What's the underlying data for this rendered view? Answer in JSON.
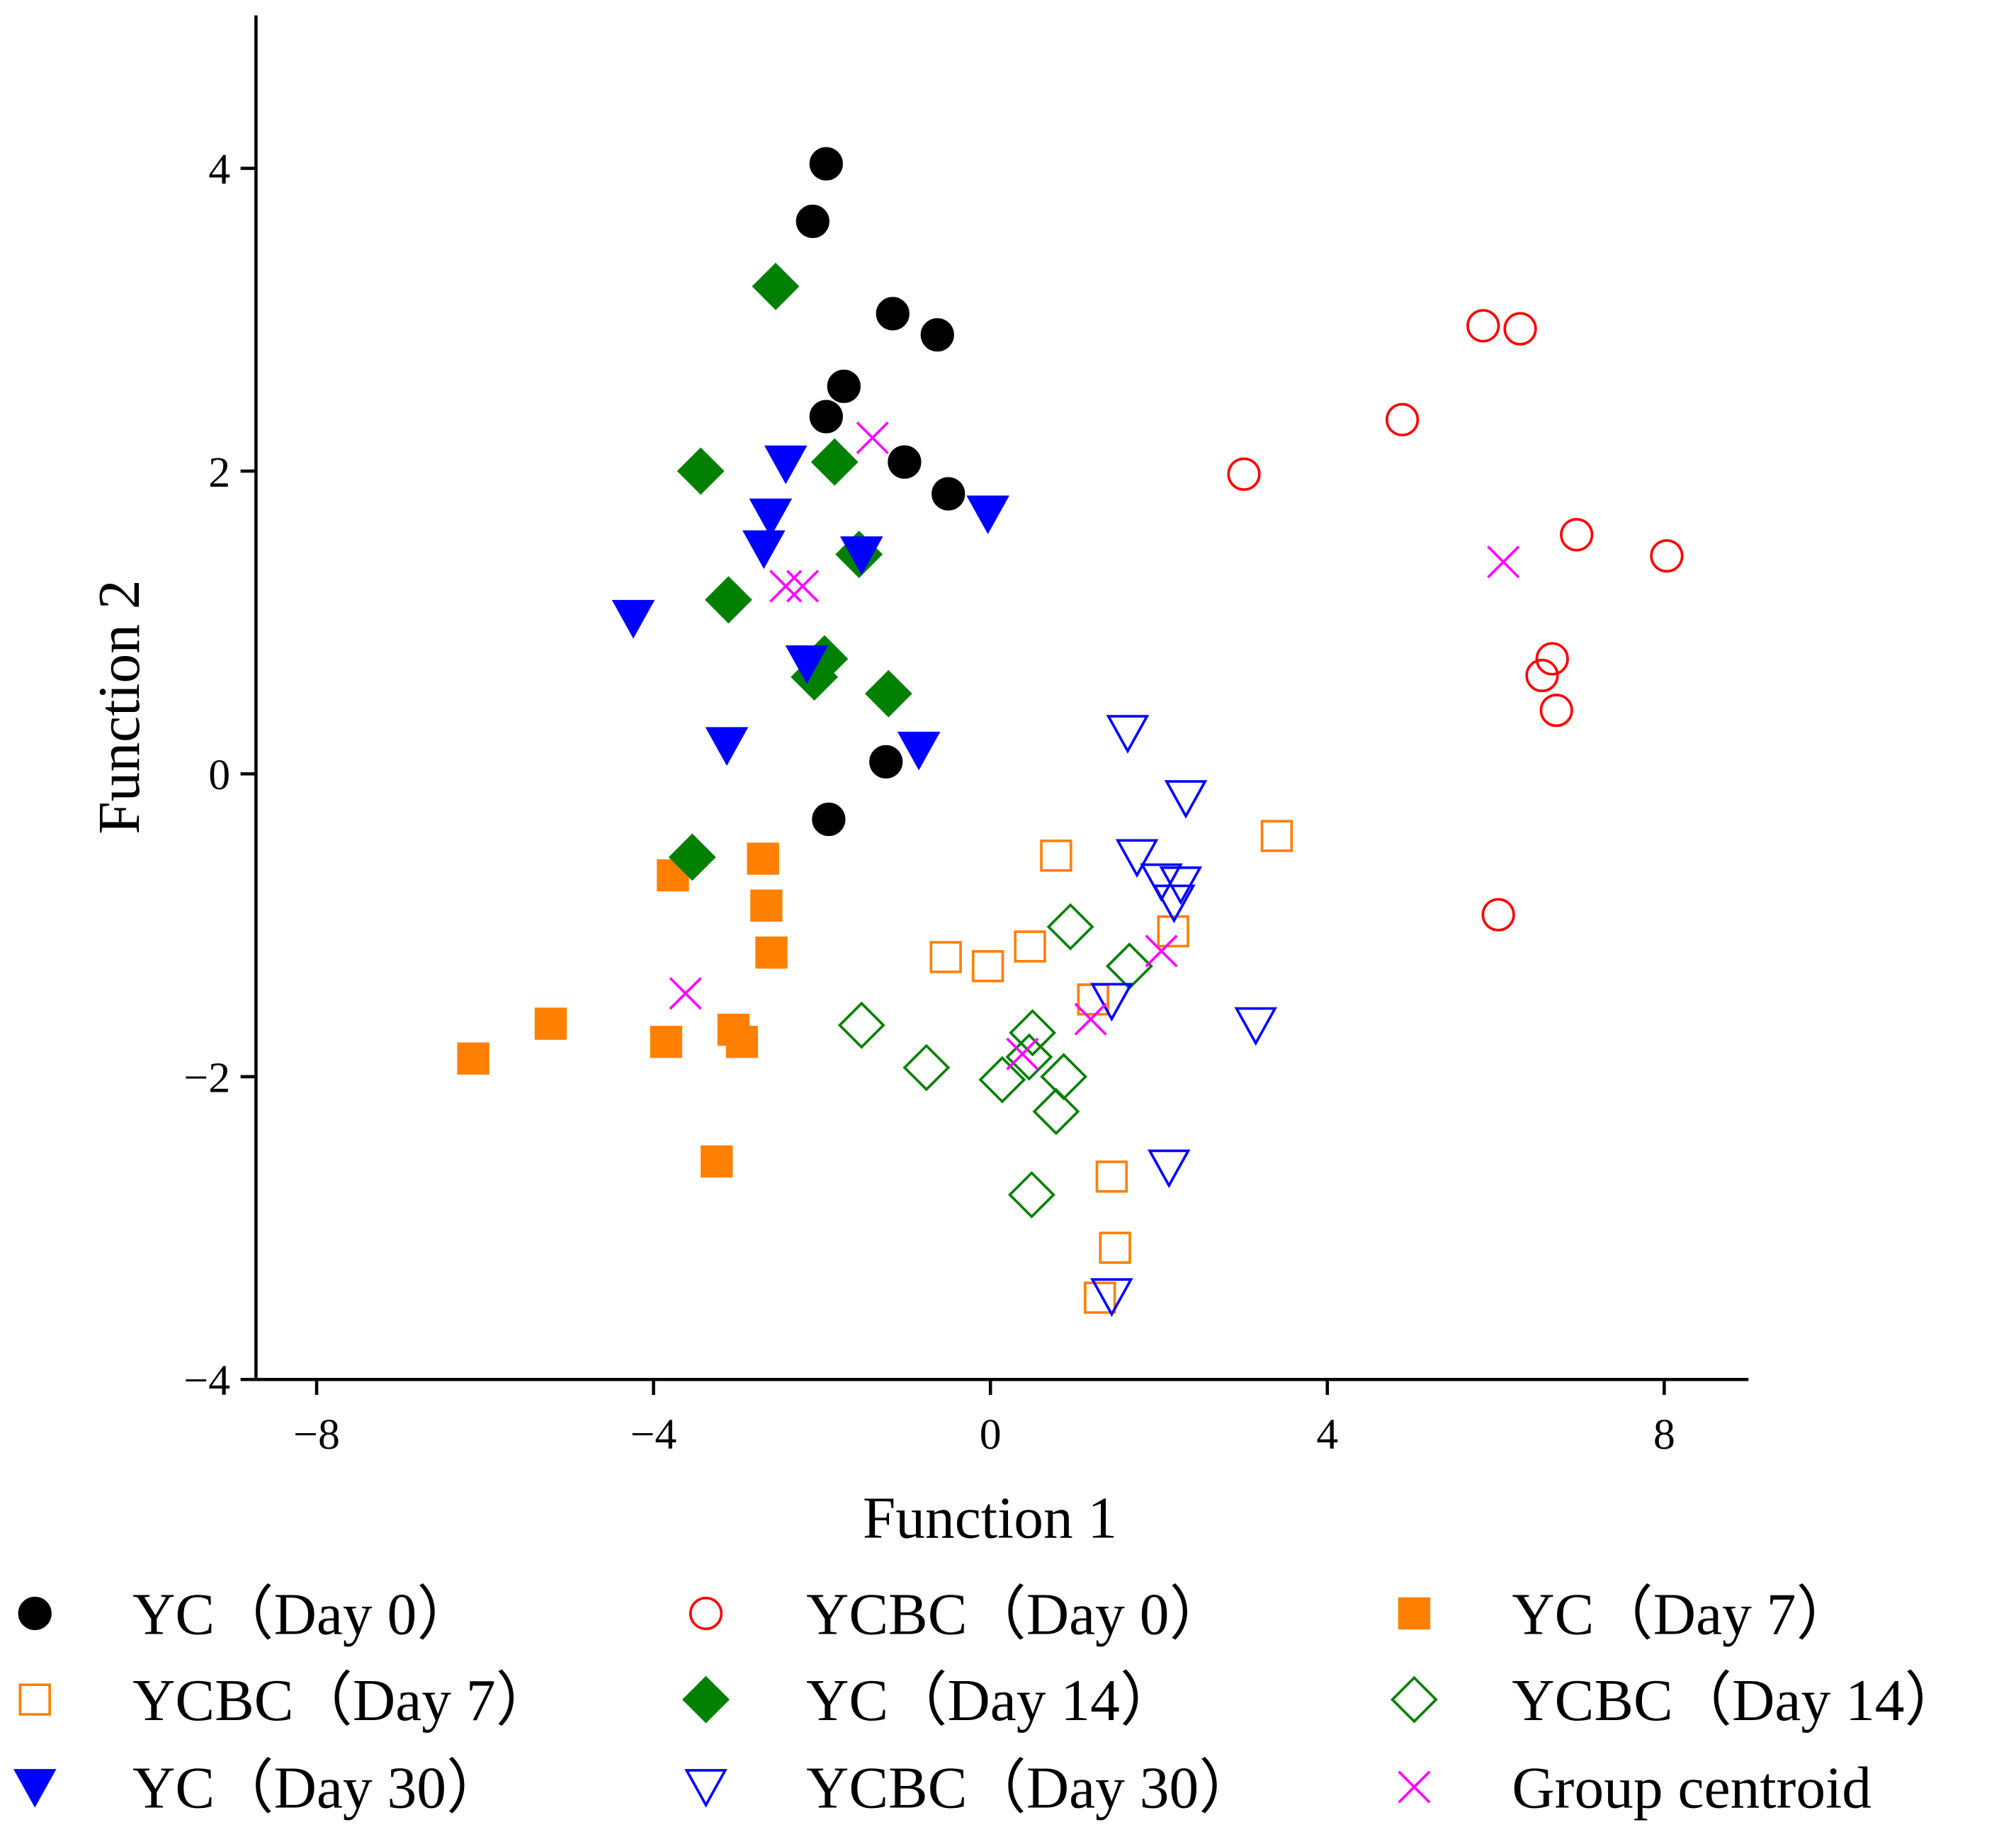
{
  "chart_data": {
    "type": "scatter",
    "title": "",
    "xlabel": "Function 1",
    "ylabel": "Function 2",
    "xlim": [
      -8.72,
      9.0
    ],
    "ylim": [
      -4,
      5.01
    ],
    "xticks": [
      -8,
      -4,
      0,
      4,
      8
    ],
    "yticks": [
      -4,
      -2,
      0,
      2,
      4
    ],
    "xtick_labels": [
      "−8",
      "−4",
      "0",
      "4",
      "8"
    ],
    "ytick_labels": [
      "−4",
      "−2",
      "0",
      "2",
      "4"
    ],
    "grid": false,
    "legend_placement": "bottom",
    "series": [
      {
        "name": "YC（Day 0）",
        "marker": "circle",
        "filled": true,
        "color": "#000000",
        "points": [
          [
            -1.95,
            4.03
          ],
          [
            -2.11,
            3.65
          ],
          [
            -1.16,
            3.04
          ],
          [
            -0.63,
            2.9
          ],
          [
            -1.74,
            2.56
          ],
          [
            -1.95,
            2.36
          ],
          [
            -1.02,
            2.06
          ],
          [
            -0.5,
            1.85
          ],
          [
            -1.24,
            0.08
          ],
          [
            -1.92,
            -0.3
          ]
        ]
      },
      {
        "name": "YCBC（Day 0）",
        "marker": "circle",
        "filled": false,
        "color": "#ff0000",
        "points": [
          [
            5.85,
            2.96
          ],
          [
            6.29,
            2.94
          ],
          [
            4.89,
            2.34
          ],
          [
            3.01,
            1.98
          ],
          [
            6.96,
            1.58
          ],
          [
            8.03,
            1.44
          ],
          [
            6.67,
            0.76
          ],
          [
            6.55,
            0.65
          ],
          [
            6.72,
            0.42
          ],
          [
            6.03,
            -0.93
          ]
        ]
      },
      {
        "name": "YC（Day 7）",
        "marker": "square",
        "filled": true,
        "color": "#ff8000",
        "points": [
          [
            -3.77,
            -0.67
          ],
          [
            -2.7,
            -0.56
          ],
          [
            -2.66,
            -0.87
          ],
          [
            -2.6,
            -1.18
          ],
          [
            -5.22,
            -1.65
          ],
          [
            -6.14,
            -1.88
          ],
          [
            -3.85,
            -1.77
          ],
          [
            -3.05,
            -1.69
          ],
          [
            -2.95,
            -1.77
          ],
          [
            -3.25,
            -2.56
          ]
        ]
      },
      {
        "name": "YCBC（Day 7）",
        "marker": "square",
        "filled": false,
        "color": "#ff8000",
        "points": [
          [
            3.4,
            -0.41
          ],
          [
            0.78,
            -0.54
          ],
          [
            -0.53,
            -1.21
          ],
          [
            -0.03,
            -1.27
          ],
          [
            0.47,
            -1.14
          ],
          [
            2.17,
            -1.04
          ],
          [
            1.22,
            -1.49
          ],
          [
            1.44,
            -2.66
          ],
          [
            1.48,
            -3.13
          ],
          [
            1.3,
            -3.46
          ]
        ]
      },
      {
        "name": "YC（Day 14）",
        "marker": "diamond",
        "filled": true,
        "color": "#008000",
        "points": [
          [
            -2.55,
            3.22
          ],
          [
            -3.44,
            2.0
          ],
          [
            -1.85,
            2.06
          ],
          [
            -1.56,
            1.45
          ],
          [
            -3.11,
            1.15
          ],
          [
            -1.97,
            0.76
          ],
          [
            -2.09,
            0.64
          ],
          [
            -1.21,
            0.53
          ],
          [
            -3.54,
            -0.55
          ]
        ]
      },
      {
        "name": "YCBC（Day 14）",
        "marker": "diamond",
        "filled": false,
        "color": "#008000",
        "points": [
          [
            0.95,
            -1.01
          ],
          [
            1.65,
            -1.27
          ],
          [
            -1.53,
            -1.66
          ],
          [
            -0.76,
            -1.94
          ],
          [
            0.5,
            -1.71
          ],
          [
            0.46,
            -1.87
          ],
          [
            0.14,
            -2.02
          ],
          [
            0.87,
            -2.0
          ],
          [
            0.78,
            -2.23
          ],
          [
            0.49,
            -2.78
          ]
        ]
      },
      {
        "name": "YC（Day 30）",
        "marker": "triangle-down",
        "filled": true,
        "color": "#0000ff",
        "points": [
          [
            -2.43,
            2.05
          ],
          [
            -0.03,
            1.72
          ],
          [
            -2.61,
            1.7
          ],
          [
            -2.69,
            1.49
          ],
          [
            -1.53,
            1.45
          ],
          [
            -4.24,
            1.03
          ],
          [
            -2.18,
            0.73
          ],
          [
            -3.13,
            0.19
          ],
          [
            -0.85,
            0.16
          ]
        ]
      },
      {
        "name": "YCBC（Day 30）",
        "marker": "triangle-down",
        "filled": false,
        "color": "#0000ff",
        "points": [
          [
            1.63,
            0.27
          ],
          [
            2.32,
            -0.16
          ],
          [
            1.74,
            -0.55
          ],
          [
            2.03,
            -0.71
          ],
          [
            2.26,
            -0.73
          ],
          [
            2.18,
            -0.85
          ],
          [
            1.44,
            -1.5
          ],
          [
            3.15,
            -1.66
          ],
          [
            2.12,
            -2.6
          ],
          [
            1.44,
            -3.45
          ]
        ]
      },
      {
        "name": "Group centroid",
        "marker": "x",
        "filled": false,
        "color": "#ff00ff",
        "points": [
          [
            -1.4,
            2.22
          ],
          [
            6.09,
            1.4
          ],
          [
            -2.43,
            1.24
          ],
          [
            -2.23,
            1.24
          ],
          [
            -3.62,
            -1.45
          ],
          [
            2.03,
            -1.17
          ],
          [
            1.19,
            -1.62
          ],
          [
            0.38,
            -1.85
          ]
        ]
      }
    ]
  }
}
